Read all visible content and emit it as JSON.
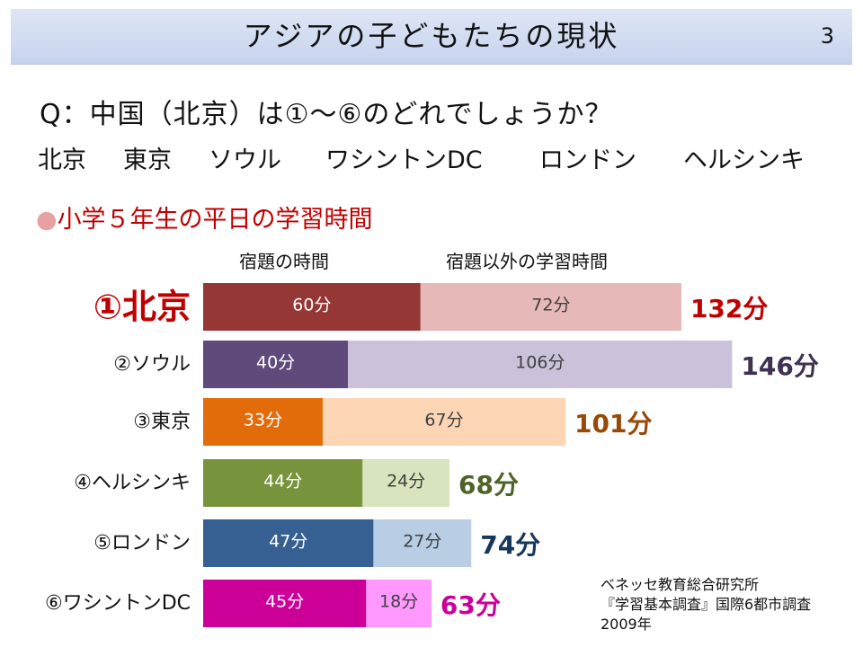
{
  "header": {
    "title": "アジアの子どもたちの現状",
    "page_number": "3"
  },
  "question": "Q：中国（北京）は①～⑥のどれでしょうか？",
  "cities": [
    "北京",
    "東京",
    "ソウル",
    "ワシントンDC",
    "ロンドン",
    "ヘルシンキ"
  ],
  "section": {
    "bullet": "●",
    "title": "小学５年生の平日の学習時間"
  },
  "source": {
    "line1": "ベネッセ教育総合研究所",
    "line2": "『学習基本調査』国際6都市調査",
    "line3": "2009年"
  },
  "chart_data": {
    "type": "bar",
    "orientation": "horizontal",
    "stacked": true,
    "categories": [
      "①北京",
      "②ソウル",
      "③東京",
      "④ヘルシンキ",
      "⑤ロンドン",
      "⑥ワシントンDC"
    ],
    "series": [
      {
        "name": "宿題の時間",
        "values": [
          60,
          40,
          33,
          44,
          47,
          45
        ],
        "labels": [
          "60分",
          "40分",
          "33分",
          "44分",
          "47分",
          "45分"
        ]
      },
      {
        "name": "宿題以外の学習時間",
        "values": [
          72,
          106,
          67,
          24,
          27,
          18
        ],
        "labels": [
          "72分",
          "106分",
          "67分",
          "24分",
          "27分",
          "18分"
        ]
      }
    ],
    "totals": [
      132,
      146,
      101,
      68,
      74,
      63
    ],
    "total_labels": [
      "132分",
      "146分",
      "101分",
      "68分",
      "74分",
      "63分"
    ],
    "highlight_category": "①北京",
    "colors": {
      "series1": [
        "#953735",
        "#604a7b",
        "#e36c0a",
        "#77933c",
        "#376092",
        "#cc0099"
      ],
      "series2": [
        "#e6b9b8",
        "#ccc1da",
        "#fcd5b5",
        "#d7e4bd",
        "#b9cde5",
        "#ff99ff"
      ],
      "total_text": [
        "#c00000",
        "#403152",
        "#984807",
        "#4f6228",
        "#17375e",
        "#cc0099"
      ],
      "highlight_label": "#c00000",
      "inner_label_dark": "#ffffff",
      "inner_label_light": "#404040"
    },
    "xlim": [
      0,
      146
    ],
    "grid": false,
    "legend_placement": "top"
  }
}
